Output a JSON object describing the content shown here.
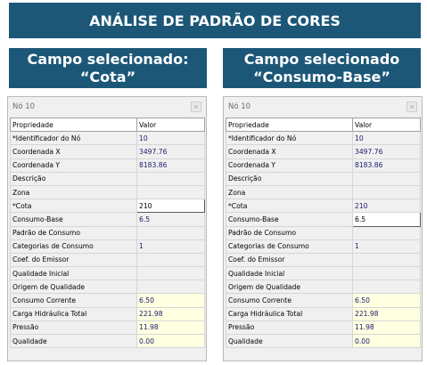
{
  "banner": {
    "title": "ANÁLISE DE PADRÃO DE CORES"
  },
  "panels": [
    {
      "heading_line1": "Campo selecionado:",
      "heading_line2": "“Cota”",
      "window_title": "Nó 10",
      "close_glyph": "×",
      "columns": [
        "Propriedade",
        "Valor"
      ],
      "rows": [
        [
          "*Identificador do Nó",
          "10"
        ],
        [
          "Coordenada X",
          "3497.76"
        ],
        [
          "Coordenada Y",
          "8183.86"
        ],
        [
          "Descrição",
          ""
        ],
        [
          "Zona",
          ""
        ],
        [
          "*Cota",
          "210"
        ],
        [
          "Consumo-Base",
          "6.5"
        ],
        [
          "Padrão de Consumo",
          ""
        ],
        [
          "Categorias de Consumo",
          "1"
        ],
        [
          "Coef. do Emissor",
          ""
        ],
        [
          "Qualidade Inicial",
          ""
        ],
        [
          "Origem de Qualidade",
          ""
        ],
        [
          "Consumo Corrente",
          "6.50"
        ],
        [
          "Carga Hidráulica Total",
          "221.98"
        ],
        [
          "Pressão",
          "11.98"
        ],
        [
          "Qualidade",
          "0.00"
        ]
      ],
      "selected_row": 5
    },
    {
      "heading_line1": "Campo selecionado",
      "heading_line2": "“Consumo-Base”",
      "window_title": "Nó 10",
      "close_glyph": "×",
      "columns": [
        "Propriedade",
        "Valor"
      ],
      "rows": [
        [
          "*Identificador do Nó",
          "10"
        ],
        [
          "Coordenada X",
          "3497.76"
        ],
        [
          "Coordenada Y",
          "8183.86"
        ],
        [
          "Descrição",
          ""
        ],
        [
          "Zona",
          ""
        ],
        [
          "*Cota",
          "210"
        ],
        [
          "Consumo-Base",
          "6.5"
        ],
        [
          "Padrão de Consumo",
          ""
        ],
        [
          "Categorias de Consumo",
          "1"
        ],
        [
          "Coef. do Emissor",
          ""
        ],
        [
          "Qualidade Inicial",
          ""
        ],
        [
          "Origem de Qualidade",
          ""
        ],
        [
          "Consumo Corrente",
          "6.50"
        ],
        [
          "Carga Hidráulica Total",
          "221.98"
        ],
        [
          "Pressão",
          "11.98"
        ],
        [
          "Qualidade",
          "0.00"
        ]
      ],
      "selected_row": 6
    }
  ],
  "colors": {
    "banner_bg": "#1c5778",
    "computed_bg": "#ffffe1",
    "value_text": "#1a1a6e"
  }
}
